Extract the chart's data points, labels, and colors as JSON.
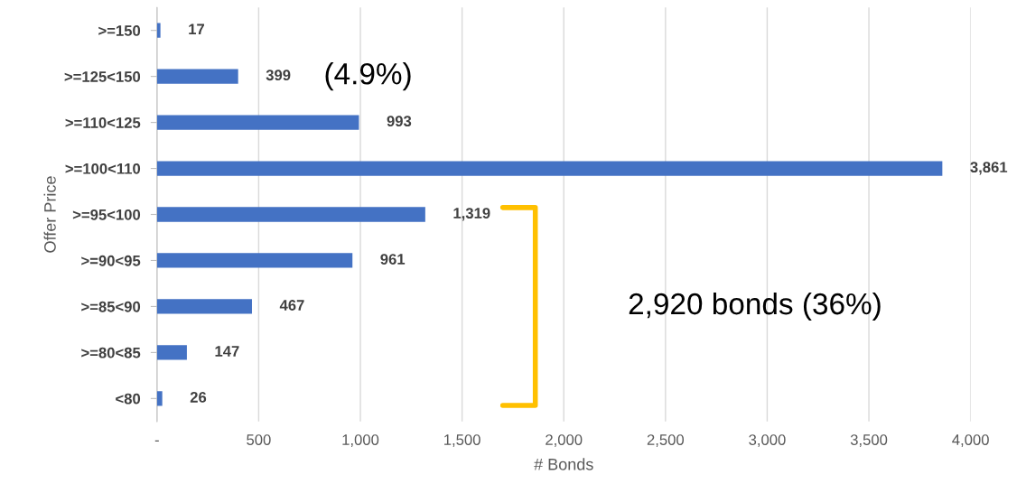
{
  "chart_data": {
    "type": "bar",
    "orientation": "horizontal",
    "xlabel": "# Bonds",
    "ylabel": "Offer Price",
    "categories": [
      ">=150",
      ">=125<150",
      ">=110<125",
      ">=100<110",
      ">=95<100",
      ">=90<95",
      ">=85<90",
      ">=80<85",
      "<80"
    ],
    "values": [
      17,
      399,
      993,
      3861,
      1319,
      961,
      467,
      147,
      26
    ],
    "value_labels": [
      "17",
      "399",
      "993",
      "3,861",
      "1,319",
      "961",
      "467",
      "147",
      "26"
    ],
    "color": "#4472c4",
    "xlim": [
      0,
      4000
    ],
    "xticks": [
      {
        "value": 0,
        "label": "-"
      },
      {
        "value": 500,
        "label": "500"
      },
      {
        "value": 1000,
        "label": "1,000"
      },
      {
        "value": 1500,
        "label": "1,500"
      },
      {
        "value": 2000,
        "label": "2,000"
      },
      {
        "value": 2500,
        "label": "2,500"
      },
      {
        "value": 3000,
        "label": "3,000"
      },
      {
        "value": 3500,
        "label": "3,500"
      },
      {
        "value": 4000,
        "label": "4,000"
      }
    ],
    "grid": "x",
    "annotations": [
      "(4.9%)",
      "2,920 bonds (36%)"
    ]
  }
}
